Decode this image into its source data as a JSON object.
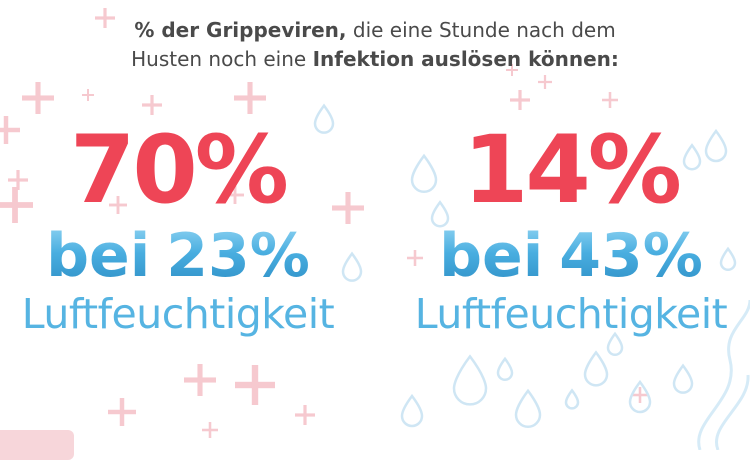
{
  "headline": {
    "part1_bold": "% der Grippeviren,",
    "part2": " die eine Stunde nach dem",
    "part3": "Husten noch eine ",
    "part4_bold": "Infektion auslösen können:"
  },
  "stats": [
    {
      "percent": "70%",
      "humidity_prefix": "bei",
      "humidity_value": "23%",
      "humidity_label": "Luftfeuchtigkeit"
    },
    {
      "percent": "14%",
      "humidity_prefix": "bei",
      "humidity_value": "43%",
      "humidity_label": "Luftfeuchtigkeit"
    }
  ],
  "colors": {
    "percent_red": "#ee4556",
    "humidity_blue": "#4fb0de",
    "headline_gray": "#4a4a4a",
    "plus_pink": "#f6c9cf",
    "drop_blue": "#cfe6f4"
  },
  "icons": [
    "plus-icon",
    "water-drop-icon"
  ]
}
